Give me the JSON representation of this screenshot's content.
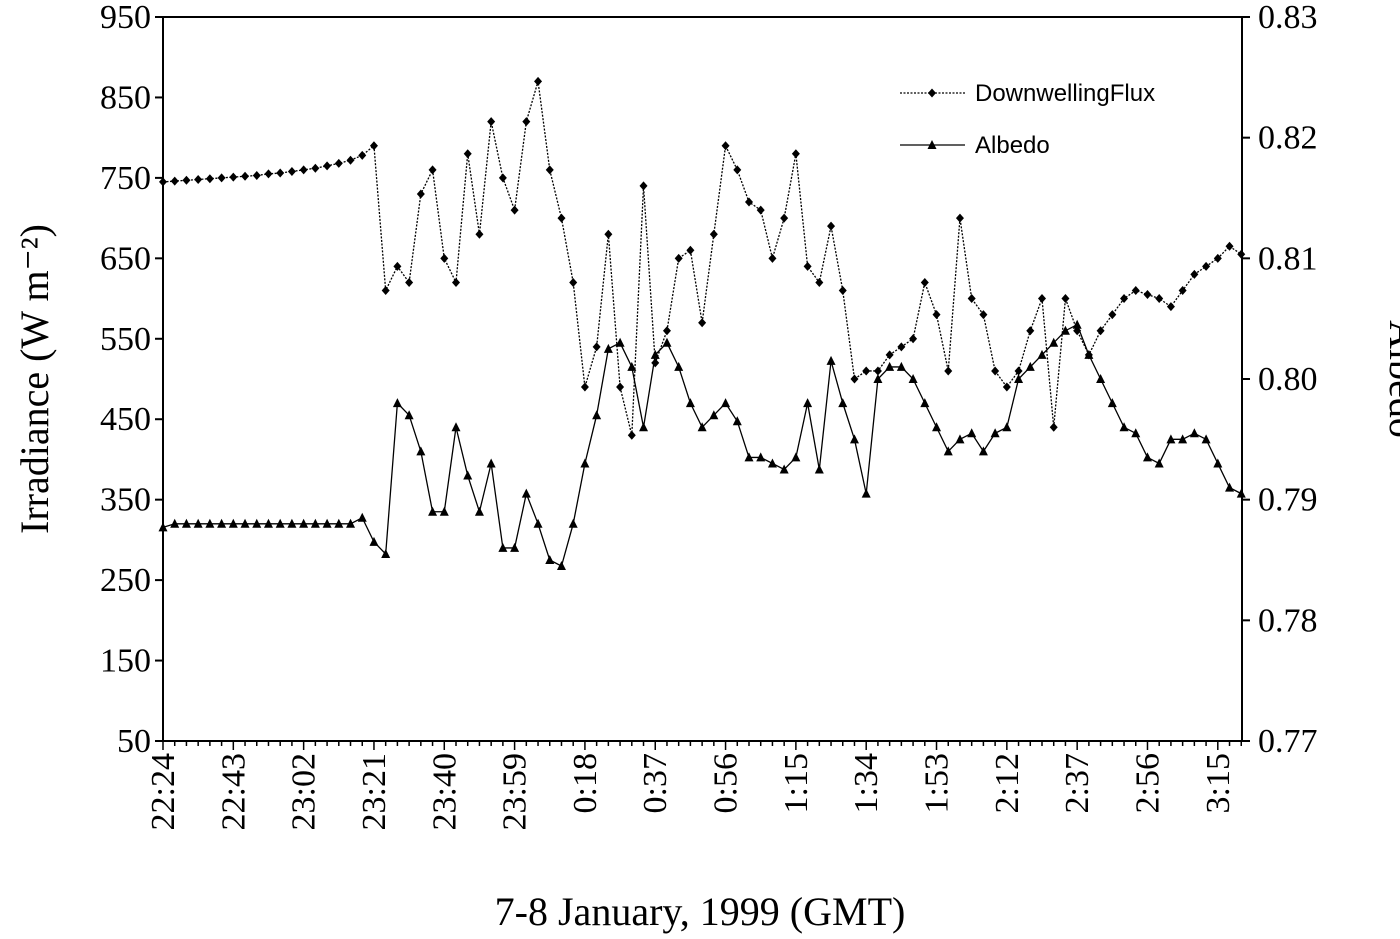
{
  "chart_data": {
    "type": "line",
    "xlabel": "7-8 January, 1999 (GMT)",
    "ylabel": "Irradiance (W m⁻²)",
    "y2label": "Albedo",
    "categories": [
      "22:24",
      null,
      null,
      null,
      null,
      null,
      "22:43",
      null,
      null,
      null,
      null,
      null,
      "23:02",
      null,
      null,
      null,
      null,
      null,
      "23:21",
      null,
      null,
      null,
      null,
      null,
      "23:40",
      null,
      null,
      null,
      null,
      null,
      "23:59",
      null,
      null,
      null,
      null,
      null,
      "0:18",
      null,
      null,
      null,
      null,
      null,
      "0:37",
      null,
      null,
      null,
      null,
      null,
      "0:56",
      null,
      null,
      null,
      null,
      null,
      "1:15",
      null,
      null,
      null,
      null,
      null,
      "1:34",
      null,
      null,
      null,
      null,
      null,
      "1:53",
      null,
      null,
      null,
      null,
      null,
      "2:12",
      null,
      null,
      null,
      null,
      null,
      "2:37",
      null,
      null,
      null,
      null,
      null,
      "2:56",
      null,
      null,
      null,
      null,
      null,
      "3:15",
      null,
      null
    ],
    "series": [
      {
        "name": "DownwellingFlux",
        "color": "#000000",
        "marker": "diamond",
        "values": [
          745,
          746,
          747,
          748,
          749,
          750,
          751,
          752,
          753,
          755,
          756,
          758,
          760,
          762,
          765,
          768,
          772,
          778,
          790,
          610,
          640,
          620,
          730,
          760,
          650,
          620,
          780,
          680,
          820,
          750,
          710,
          820,
          870,
          760,
          700,
          620,
          490,
          540,
          680,
          490,
          430,
          740,
          520,
          560,
          650,
          660,
          570,
          680,
          790,
          760,
          720,
          710,
          650,
          700,
          780,
          640,
          620,
          690,
          610,
          500,
          510,
          510,
          530,
          540,
          550,
          620,
          580,
          510,
          700,
          600,
          580,
          510,
          490,
          510,
          560,
          600,
          440,
          600,
          560,
          530,
          560,
          580,
          600,
          610,
          605,
          600,
          590,
          610,
          630,
          640,
          650,
          665,
          655
        ]
      },
      {
        "name": "Albedo",
        "color": "#000000",
        "marker": "triangle",
        "axis": "y2",
        "values": [
          0.7877,
          0.788,
          0.788,
          0.788,
          0.788,
          0.788,
          0.788,
          0.788,
          0.788,
          0.788,
          0.788,
          0.788,
          0.788,
          0.788,
          0.788,
          0.788,
          0.788,
          0.7885,
          0.7865,
          0.7855,
          0.798,
          0.797,
          0.794,
          0.789,
          0.789,
          0.796,
          0.792,
          0.789,
          0.793,
          0.786,
          0.786,
          0.7905,
          0.788,
          0.785,
          0.7845,
          0.788,
          0.793,
          0.797,
          0.8025,
          0.803,
          0.801,
          0.796,
          0.802,
          0.803,
          0.801,
          0.798,
          0.796,
          0.797,
          0.798,
          0.7965,
          0.7935,
          0.7935,
          0.793,
          0.7925,
          0.7935,
          0.798,
          0.7925,
          0.8015,
          0.798,
          0.795,
          0.7905,
          0.8,
          0.801,
          0.801,
          0.8,
          0.798,
          0.796,
          0.794,
          0.795,
          0.7955,
          0.794,
          0.7955,
          0.796,
          0.8,
          0.801,
          0.802,
          0.803,
          0.804,
          0.8045,
          0.802,
          0.8,
          0.798,
          0.796,
          0.7955,
          0.7935,
          0.793,
          0.795,
          0.795,
          0.7955,
          0.795,
          0.793,
          0.791,
          0.7905
        ]
      }
    ],
    "ylim": [
      50,
      950
    ],
    "yticks": [
      50,
      150,
      250,
      350,
      450,
      550,
      650,
      750,
      850,
      950
    ],
    "y2lim": [
      0.77,
      0.83
    ],
    "y2ticks": [
      0.77,
      0.78,
      0.79,
      {
        "value": 0.8,
        "label": "0.80"
      },
      0.81,
      0.82,
      0.83
    ],
    "legend": "upper right"
  }
}
